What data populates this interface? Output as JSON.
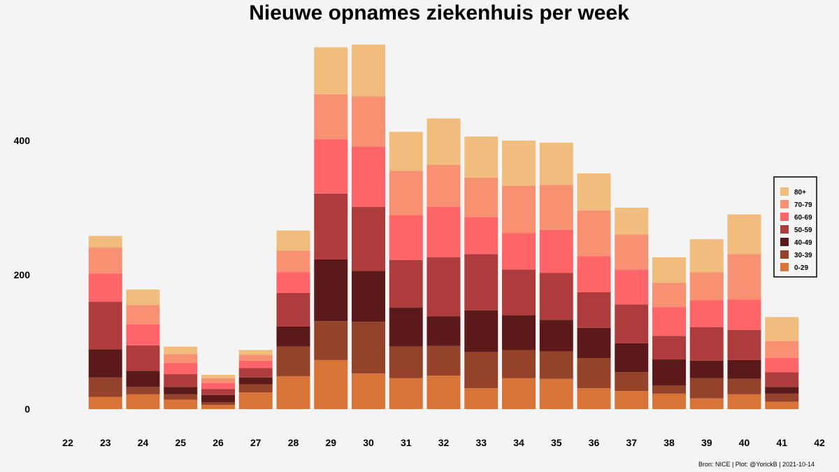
{
  "chart_data": {
    "type": "bar",
    "stacked": true,
    "title": "Nieuwe opnames ziekenhuis per week",
    "xlabel": "",
    "ylabel": "",
    "x_ticks": [
      "22",
      "23",
      "24",
      "25",
      "26",
      "27",
      "28",
      "29",
      "30",
      "31",
      "32",
      "33",
      "34",
      "35",
      "36",
      "37",
      "38",
      "39",
      "40",
      "41",
      "42"
    ],
    "categories": [
      "23",
      "24",
      "25",
      "26",
      "27",
      "28",
      "29",
      "30",
      "31",
      "32",
      "33",
      "34",
      "35",
      "36",
      "37",
      "38",
      "39",
      "40",
      "41"
    ],
    "y_ticks": [
      0,
      200,
      400
    ],
    "ylim": [
      0,
      560
    ],
    "xlim": [
      22,
      42
    ],
    "grid": false,
    "legend_position": "right",
    "series": [
      {
        "name": "0-29",
        "color": "#d87438",
        "values": [
          18,
          22,
          14,
          6,
          25,
          49,
          73,
          53,
          46,
          50,
          31,
          46,
          45,
          31,
          27,
          23,
          16,
          22,
          11
        ]
      },
      {
        "name": "30-39",
        "color": "#94432a",
        "values": [
          29,
          11,
          8,
          4,
          12,
          44,
          58,
          77,
          47,
          44,
          54,
          42,
          41,
          45,
          28,
          12,
          30,
          23,
          12
        ]
      },
      {
        "name": "40-49",
        "color": "#5b1919",
        "values": [
          42,
          24,
          11,
          11,
          10,
          30,
          92,
          76,
          58,
          44,
          62,
          52,
          47,
          45,
          43,
          39,
          26,
          28,
          10
        ]
      },
      {
        "name": "50-59",
        "color": "#ae3c3c",
        "values": [
          71,
          38,
          19,
          9,
          14,
          50,
          98,
          95,
          71,
          88,
          84,
          68,
          70,
          53,
          58,
          35,
          50,
          45,
          22
        ]
      },
      {
        "name": "60-69",
        "color": "#fe6468",
        "values": [
          42,
          31,
          17,
          9,
          11,
          31,
          81,
          90,
          67,
          75,
          55,
          54,
          64,
          54,
          52,
          43,
          40,
          45,
          21
        ]
      },
      {
        "name": "70-79",
        "color": "#f79172",
        "values": [
          39,
          29,
          13,
          7,
          9,
          32,
          67,
          75,
          66,
          63,
          59,
          71,
          67,
          68,
          52,
          36,
          42,
          68,
          25
        ]
      },
      {
        "name": "80+",
        "color": "#f1bd7c",
        "values": [
          17,
          23,
          11,
          5,
          7,
          30,
          70,
          77,
          58,
          69,
          61,
          67,
          63,
          55,
          40,
          38,
          49,
          59,
          36
        ]
      }
    ],
    "caption": "Bron: NICE | Plot: @YorickB |  2021-10-14"
  }
}
